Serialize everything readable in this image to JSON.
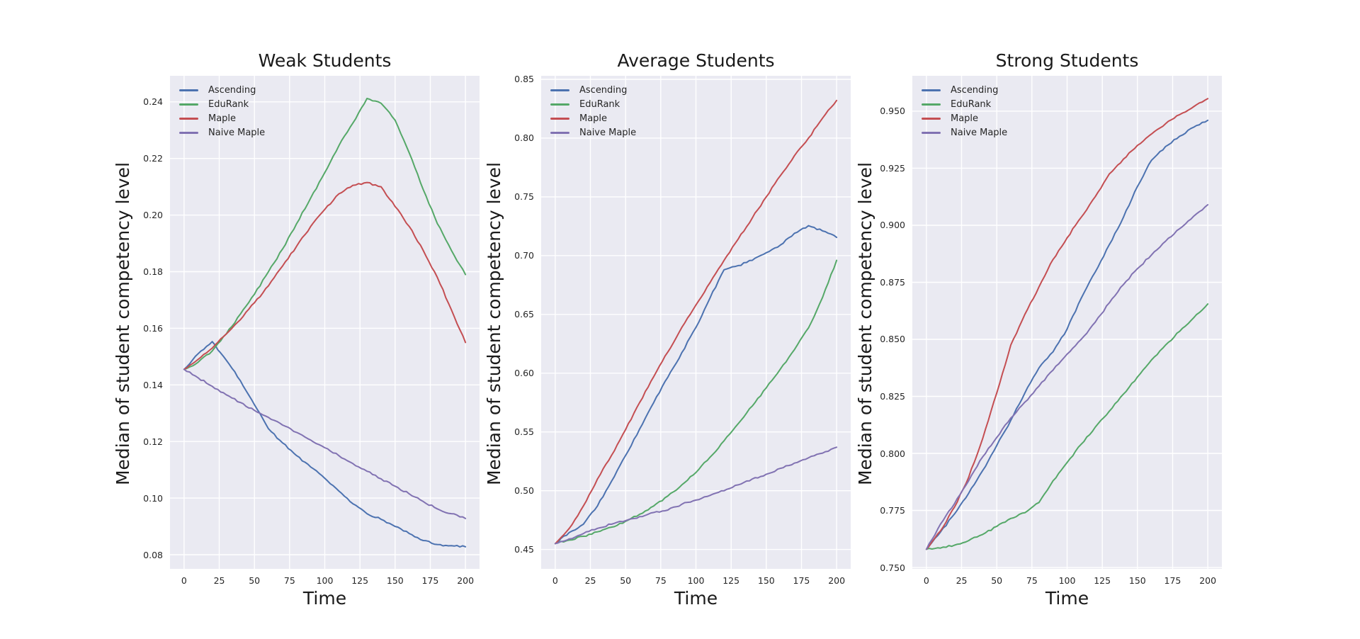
{
  "style": {
    "figure_bg": "#ffffff",
    "axes_bg": "#eaeaf2",
    "grid_color": "#ffffff",
    "text_color": "#262626"
  },
  "palette": {
    "ascending": "#4C72B0",
    "edurank": "#55A868",
    "maple": "#C44E52",
    "naive_maple": "#8172B2"
  },
  "chart_data": [
    {
      "type": "line",
      "title": "Weak Students",
      "xlabel": "Time",
      "ylabel": "Median of student competency level",
      "legend_position": "upper left",
      "grid": true,
      "xlim": [
        -10,
        210
      ],
      "ylim": [
        0.075,
        0.2492
      ],
      "xticks": [
        0,
        25,
        50,
        75,
        100,
        125,
        150,
        175,
        200
      ],
      "xtick_labels": [
        "0",
        "25",
        "50",
        "75",
        "100",
        "125",
        "150",
        "175",
        "200"
      ],
      "yticks": [
        0.08,
        0.1,
        0.12,
        0.14,
        0.16,
        0.18,
        0.2,
        0.22,
        0.24
      ],
      "ytick_labels": [
        "0.08",
        "0.10",
        "0.12",
        "0.14",
        "0.16",
        "0.18",
        "0.20",
        "0.22",
        "0.24"
      ],
      "x": [
        0,
        10,
        20,
        30,
        40,
        50,
        60,
        70,
        80,
        90,
        100,
        110,
        120,
        130,
        140,
        150,
        160,
        170,
        180,
        190,
        200
      ],
      "series": [
        {
          "name": "Ascending",
          "color": "ascending",
          "values": [
            0.1455,
            0.151,
            0.1553,
            0.1487,
            0.1415,
            0.133,
            0.1245,
            0.1195,
            0.115,
            0.111,
            0.107,
            0.1025,
            0.098,
            0.0945,
            0.0925,
            0.09,
            0.0875,
            0.085,
            0.0836,
            0.0832,
            0.0828
          ]
        },
        {
          "name": "EduRank",
          "color": "edurank",
          "values": [
            0.1455,
            0.148,
            0.152,
            0.158,
            0.165,
            0.172,
            0.18,
            0.188,
            0.197,
            0.206,
            0.215,
            0.2245,
            0.2325,
            0.2412,
            0.2395,
            0.2335,
            0.222,
            0.209,
            0.197,
            0.1875,
            0.179
          ]
        },
        {
          "name": "Maple",
          "color": "maple",
          "values": [
            0.1455,
            0.149,
            0.153,
            0.158,
            0.163,
            0.169,
            0.175,
            0.182,
            0.189,
            0.196,
            0.202,
            0.2075,
            0.2105,
            0.2115,
            0.21,
            0.203,
            0.196,
            0.1875,
            0.178,
            0.1665,
            0.155
          ]
        },
        {
          "name": "Naive Maple",
          "color": "naive_maple",
          "values": [
            0.1455,
            0.1425,
            0.1395,
            0.1365,
            0.1338,
            0.131,
            0.1285,
            0.1258,
            0.1232,
            0.1205,
            0.1178,
            0.115,
            0.1122,
            0.1095,
            0.1068,
            0.1042,
            0.1015,
            0.0988,
            0.0962,
            0.0945,
            0.0928
          ]
        }
      ]
    },
    {
      "type": "line",
      "title": "Average Students",
      "xlabel": "Time",
      "ylabel": "Median of student competency level",
      "legend_position": "upper left",
      "grid": true,
      "xlim": [
        -10,
        210
      ],
      "ylim": [
        0.4335,
        0.853
      ],
      "xticks": [
        0,
        25,
        50,
        75,
        100,
        125,
        150,
        175,
        200
      ],
      "xtick_labels": [
        "0",
        "25",
        "50",
        "75",
        "100",
        "125",
        "150",
        "175",
        "200"
      ],
      "yticks": [
        0.45,
        0.5,
        0.55,
        0.6,
        0.65,
        0.7,
        0.75,
        0.8,
        0.85
      ],
      "ytick_labels": [
        "0.45",
        "0.50",
        "0.55",
        "0.60",
        "0.65",
        "0.70",
        "0.75",
        "0.80",
        "0.85"
      ],
      "x": [
        0,
        10,
        20,
        30,
        40,
        50,
        60,
        70,
        80,
        90,
        100,
        110,
        120,
        130,
        140,
        150,
        160,
        170,
        180,
        190,
        200
      ],
      "series": [
        {
          "name": "Ascending",
          "color": "ascending",
          "values": [
            0.455,
            0.4645,
            0.4715,
            0.487,
            0.508,
            0.53,
            0.5525,
            0.575,
            0.5965,
            0.6175,
            0.639,
            0.664,
            0.688,
            0.6915,
            0.696,
            0.7025,
            0.709,
            0.719,
            0.7255,
            0.721,
            0.7155
          ]
        },
        {
          "name": "EduRank",
          "color": "edurank",
          "values": [
            0.455,
            0.458,
            0.4612,
            0.465,
            0.469,
            0.474,
            0.48,
            0.487,
            0.4955,
            0.505,
            0.5155,
            0.5285,
            0.5425,
            0.557,
            0.572,
            0.5875,
            0.6035,
            0.62,
            0.6385,
            0.6645,
            0.696
          ]
        },
        {
          "name": "Maple",
          "color": "maple",
          "values": [
            0.455,
            0.468,
            0.487,
            0.51,
            0.53,
            0.552,
            0.575,
            0.597,
            0.618,
            0.639,
            0.658,
            0.677,
            0.696,
            0.714,
            0.732,
            0.75,
            0.768,
            0.785,
            0.8,
            0.817,
            0.832
          ]
        },
        {
          "name": "Naive Maple",
          "color": "naive_maple",
          "values": [
            0.455,
            0.459,
            0.4635,
            0.468,
            0.4715,
            0.4745,
            0.478,
            0.4815,
            0.4835,
            0.4885,
            0.492,
            0.496,
            0.5,
            0.505,
            0.51,
            0.514,
            0.519,
            0.5235,
            0.528,
            0.532,
            0.537
          ]
        }
      ]
    },
    {
      "type": "line",
      "title": "Strong Students",
      "xlabel": "Time",
      "ylabel": "Median of student competency level",
      "legend_position": "upper left",
      "grid": true,
      "xlim": [
        -10,
        210
      ],
      "ylim": [
        0.7494,
        0.9655
      ],
      "xticks": [
        0,
        25,
        50,
        75,
        100,
        125,
        150,
        175,
        200
      ],
      "xtick_labels": [
        "0",
        "25",
        "50",
        "75",
        "100",
        "125",
        "150",
        "175",
        "200"
      ],
      "yticks": [
        0.75,
        0.775,
        0.8,
        0.825,
        0.85,
        0.875,
        0.9,
        0.925,
        0.95
      ],
      "ytick_labels": [
        "0.750",
        "0.775",
        "0.800",
        "0.825",
        "0.850",
        "0.875",
        "0.900",
        "0.925",
        "0.950"
      ],
      "x": [
        0,
        10,
        20,
        30,
        40,
        50,
        60,
        70,
        80,
        90,
        100,
        110,
        120,
        130,
        140,
        150,
        160,
        170,
        180,
        190,
        200
      ],
      "series": [
        {
          "name": "Ascending",
          "color": "ascending",
          "values": [
            0.758,
            0.7655,
            0.7735,
            0.7825,
            0.7925,
            0.8035,
            0.8145,
            0.8265,
            0.8375,
            0.8445,
            0.8545,
            0.868,
            0.8795,
            0.8915,
            0.9035,
            0.917,
            0.9285,
            0.9345,
            0.939,
            0.943,
            0.946
          ]
        },
        {
          "name": "EduRank",
          "color": "edurank",
          "values": [
            0.758,
            0.7585,
            0.7598,
            0.7618,
            0.7645,
            0.768,
            0.7715,
            0.774,
            0.7785,
            0.788,
            0.796,
            0.804,
            0.8115,
            0.8185,
            0.826,
            0.8335,
            0.841,
            0.8475,
            0.8535,
            0.8595,
            0.8655
          ]
        },
        {
          "name": "Maple",
          "color": "maple",
          "values": [
            0.758,
            0.766,
            0.7765,
            0.7895,
            0.8065,
            0.8265,
            0.8475,
            0.861,
            0.873,
            0.885,
            0.8945,
            0.9035,
            0.9125,
            0.9225,
            0.929,
            0.935,
            0.94,
            0.9445,
            0.9485,
            0.952,
            0.9555
          ]
        },
        {
          "name": "Naive Maple",
          "color": "naive_maple",
          "values": [
            0.758,
            0.769,
            0.778,
            0.788,
            0.7985,
            0.807,
            0.8155,
            0.8225,
            0.8295,
            0.8365,
            0.8435,
            0.85,
            0.8575,
            0.866,
            0.874,
            0.881,
            0.887,
            0.893,
            0.8985,
            0.904,
            0.909
          ]
        }
      ]
    }
  ]
}
